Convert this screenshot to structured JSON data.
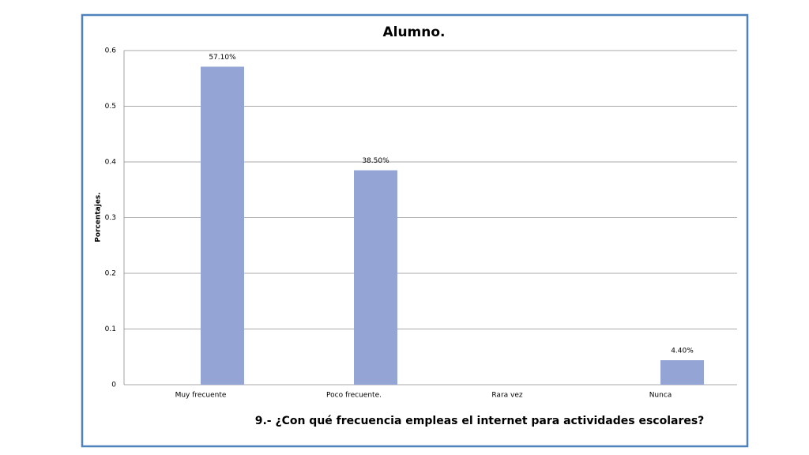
{
  "chart_data": {
    "type": "bar",
    "title": "Alumno.",
    "y_label": "Porcentajes.",
    "x_label": "9.- ¿Con qué frecuencia empleas el internet para actividades escolares?",
    "categories": [
      "Muy frecuente",
      "Poco frecuente.",
      "Rara vez",
      "Nunca"
    ],
    "values": [
      0.571,
      0.385,
      null,
      0.044
    ],
    "value_labels": [
      "57.10%",
      "38.50%",
      null,
      "4.40%"
    ],
    "color": "#94a5d5",
    "ylim": [
      0,
      0.6
    ],
    "yticks": [
      0,
      0.1,
      0.2,
      0.3,
      0.4,
      0.5,
      0.6
    ],
    "grid": true
  }
}
